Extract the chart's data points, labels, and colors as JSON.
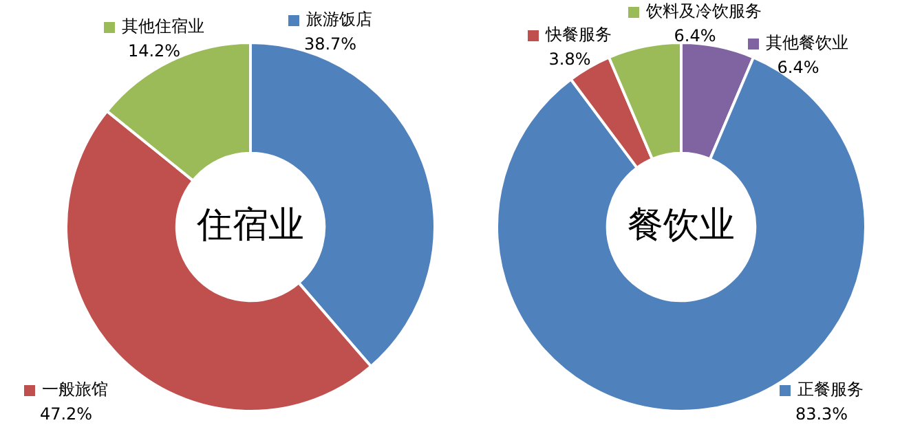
{
  "chart_data": [
    {
      "type": "donut",
      "title": "住宿业",
      "categories": [
        "旅游饭店",
        "一般旅馆",
        "其他住宿业"
      ],
      "values": [
        38.7,
        47.2,
        14.2
      ],
      "colors": [
        "#4f81bd",
        "#c0504d",
        "#9bbb59"
      ],
      "value_labels": [
        "38.7%",
        "47.2%",
        "14.2%"
      ],
      "legend": "top"
    },
    {
      "type": "donut",
      "title": "餐饮业",
      "categories": [
        "其他餐饮业",
        "正餐服务",
        "快餐服务",
        "饮料及冷饮服务"
      ],
      "values": [
        6.4,
        83.3,
        3.8,
        6.4
      ],
      "colors": [
        "#8064a2",
        "#4f81bd",
        "#c0504d",
        "#9bbb59"
      ],
      "value_labels": [
        "6.4%",
        "83.3%",
        "3.8%",
        "6.4%"
      ],
      "legend": "top"
    }
  ]
}
